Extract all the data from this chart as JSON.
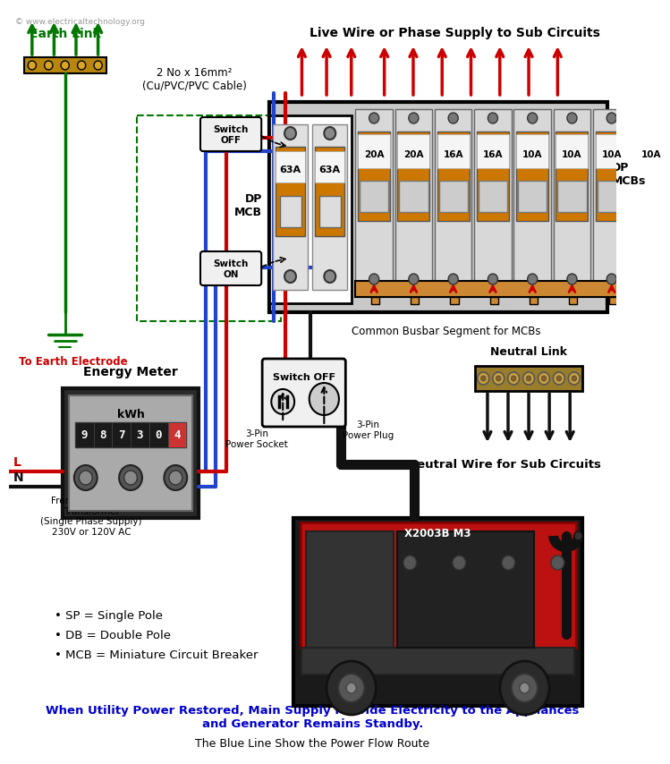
{
  "bg_color": "#ffffff",
  "title_bottom_bold": "When Utility Power Restored, Main Supply Provide Electricity to the Appliances\nand Generator Remains Standby.",
  "title_bottom_normal": "The Blue Line Show the Power Flow Route",
  "watermark": "© www.electricaltechnology.org",
  "earth_link_label": "Earth Link",
  "live_wire_label": "Live Wire or Phase Supply to Sub Circuits",
  "cable_label": "2 No x 16mm²\n(Cu/PVC/PVC Cable)",
  "dp_mcb_label": "DP\nMCB",
  "switch_off_label": "Switch\nOFF",
  "switch_on_label": "Switch\nON",
  "neutral_link_label": "Neutral Link",
  "neutral_wire_label": "Neutral Wire for Sub Circuits",
  "common_busbar_label": "Common Busbar Segment for MCBs",
  "dp_mcbs_label": "DP\nMCBs",
  "energy_meter_label": "Energy Meter",
  "kwh_label": "kWh",
  "meter_reading": "9 8 7 3 0 4",
  "switch_off2_label": "Switch OFF",
  "pin3_socket_label": "3-Pin\nPower Socket",
  "pin3_plug_label": "3-Pin\nPower Plug",
  "from_dist_label": "From Distribution\nTransformer\n(Single Phase Supply)\n230V or 120V AC",
  "earth_electrode_label": "To Earth Electrode",
  "legend1": "• SP = Single Pole",
  "legend2": "• DB = Double Pole",
  "legend3": "• MCB = Miniature Circuit Breaker",
  "mcb_labels_main": [
    "63A",
    "63A"
  ],
  "mcb_labels_sub": [
    "20A",
    "20A",
    "16A",
    "16A",
    "10A",
    "10A",
    "10A",
    "10A"
  ],
  "green_color": "#00aa00",
  "dark_green": "#007700",
  "red_color": "#cc0000",
  "blue_color": "#2244cc",
  "orange_color": "#cc7700",
  "black_color": "#111111",
  "dark_blue_label_color": "#0000cc",
  "panel_bg": "#cccccc",
  "panel_border": "#111111",
  "busbar_color": "#cc8833"
}
